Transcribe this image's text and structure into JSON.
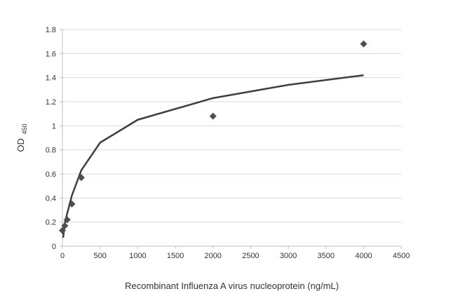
{
  "chart_data": {
    "type": "scatter",
    "title": "",
    "xlabel": "Recombinant Influenza A virus nucleoprotein (ng/mL)",
    "ylabel": "OD",
    "ylabel_subscript": "450",
    "xlim": [
      0,
      4500
    ],
    "ylim": [
      0,
      1.8
    ],
    "x_ticks": [
      0,
      500,
      1000,
      1500,
      2000,
      2500,
      3000,
      3500,
      4000,
      4500
    ],
    "y_ticks": [
      0,
      0.2,
      0.4,
      0.6,
      0.8,
      1,
      1.2,
      1.4,
      1.6,
      1.8
    ],
    "y_tick_labels": [
      "0",
      "0.2",
      "0.4",
      "0.6",
      "0.8",
      "1",
      "1.2",
      "1.4",
      "1.6",
      "1.8"
    ],
    "grid": "horizontal",
    "legend": "none",
    "marker": "diamond",
    "points": [
      {
        "x": 0,
        "y": 0.13
      },
      {
        "x": 31.25,
        "y": 0.17
      },
      {
        "x": 62.5,
        "y": 0.22
      },
      {
        "x": 125,
        "y": 0.35
      },
      {
        "x": 250,
        "y": 0.57
      },
      {
        "x": 2000,
        "y": 1.08
      },
      {
        "x": 4000,
        "y": 1.68
      }
    ],
    "trendline": {
      "type": "logarithmic",
      "x_range": [
        10,
        4000
      ],
      "samples": [
        {
          "x": 10,
          "y": 0.07
        },
        {
          "x": 31.25,
          "y": 0.19
        },
        {
          "x": 62.5,
          "y": 0.27
        },
        {
          "x": 125,
          "y": 0.42
        },
        {
          "x": 250,
          "y": 0.63
        },
        {
          "x": 500,
          "y": 0.86
        },
        {
          "x": 1000,
          "y": 1.05
        },
        {
          "x": 2000,
          "y": 1.23
        },
        {
          "x": 3000,
          "y": 1.34
        },
        {
          "x": 4000,
          "y": 1.42
        }
      ]
    },
    "colors": {
      "marker": "#4d4d4d",
      "trendline": "#3f3f3f",
      "grid": "#d9d9d9",
      "axis": "#bfbfbf",
      "text": "#333333"
    }
  }
}
